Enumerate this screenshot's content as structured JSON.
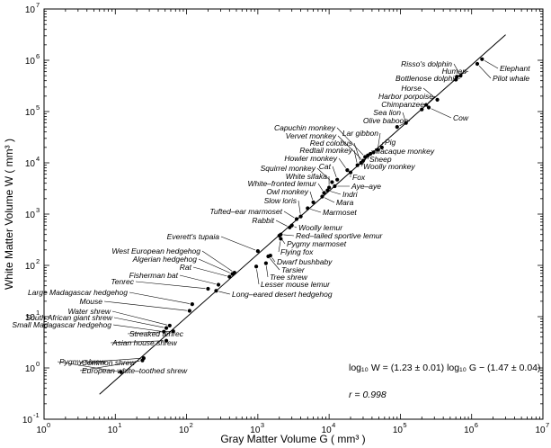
{
  "chart_data": {
    "type": "scatter",
    "xscale": "log",
    "yscale": "log",
    "xlim": [
      1,
      10000000
    ],
    "ylim": [
      0.1,
      10000000
    ],
    "xlabel": "Gray Matter Volume G ( mm³ )",
    "ylabel": "White Matter Volume W ( mm³ )",
    "x_ticks": [
      {
        "v": 1,
        "m": "10",
        "e": "0"
      },
      {
        "v": 10,
        "m": "10",
        "e": "1"
      },
      {
        "v": 100,
        "m": "10",
        "e": "2"
      },
      {
        "v": 1000,
        "m": "10",
        "e": "3"
      },
      {
        "v": 10000,
        "m": "10",
        "e": "4"
      },
      {
        "v": 100000,
        "m": "10",
        "e": "5"
      },
      {
        "v": 1000000,
        "m": "10",
        "e": "6"
      },
      {
        "v": 10000000,
        "m": "10",
        "e": "7"
      }
    ],
    "y_ticks": [
      {
        "v": 0.1,
        "m": "10",
        "e": "-1"
      },
      {
        "v": 1,
        "m": "10",
        "e": "0"
      },
      {
        "v": 10,
        "m": "10",
        "e": "1"
      },
      {
        "v": 100,
        "m": "10",
        "e": "2"
      },
      {
        "v": 1000,
        "m": "10",
        "e": "3"
      },
      {
        "v": 10000,
        "m": "10",
        "e": "4"
      },
      {
        "v": 100000,
        "m": "10",
        "e": "5"
      },
      {
        "v": 1000000,
        "m": "10",
        "e": "6"
      },
      {
        "v": 10000000,
        "m": "10",
        "e": "7"
      }
    ],
    "fit": {
      "equation": "log₁₀ W = (1.23 ± 0.01) log₁₀ G − (1.47 ± 0.04)",
      "r": "r = 0.998",
      "slope": 1.23,
      "intercept": -1.47,
      "x_range": [
        6,
        3000000
      ]
    },
    "points": [
      {
        "label": "Pygmy shrew",
        "x": 12,
        "y": 0.83
      },
      {
        "label": "Common shrew",
        "x": 25,
        "y": 1.55
      },
      {
        "label": "European white-toothed shrew",
        "x": 24,
        "y": 1.4
      },
      {
        "label": "Asian house shrew",
        "x": 52,
        "y": 3.4
      },
      {
        "label": "Streaked tenrec",
        "x": 65,
        "y": 5.2
      },
      {
        "label": "Small Madagascar hedgehog",
        "x": 48,
        "y": 5.1
      },
      {
        "label": "South African giant shrew",
        "x": 52,
        "y": 6
      },
      {
        "label": "Water shrew",
        "x": 58,
        "y": 6.7
      },
      {
        "label": "Mouse",
        "x": 110,
        "y": 13
      },
      {
        "label": "Large Madagascar hedgehog",
        "x": 120,
        "y": 17.5
      },
      {
        "label": "Tenrec",
        "x": 200,
        "y": 35
      },
      {
        "label": "Fisherman bat",
        "x": 280,
        "y": 42
      },
      {
        "label": "Long-eared desert hedgehog",
        "x": 260,
        "y": 32
      },
      {
        "label": "Rat",
        "x": 400,
        "y": 60
      },
      {
        "label": "Algerian hedgehog",
        "x": 440,
        "y": 68
      },
      {
        "label": "West European hedgehog",
        "x": 470,
        "y": 72
      },
      {
        "label": "Everett's tupaia",
        "x": 1000,
        "y": 190
      },
      {
        "label": "Lesser mouse lemur",
        "x": 950,
        "y": 95
      },
      {
        "label": "Tree shrew",
        "x": 1300,
        "y": 110
      },
      {
        "label": "Tarsier",
        "x": 1400,
        "y": 150
      },
      {
        "label": "Dwarf bushbaby",
        "x": 1500,
        "y": 155
      },
      {
        "label": "Flying fox",
        "x": 2100,
        "y": 330
      },
      {
        "label": "Pygmy marmoset",
        "x": 2000,
        "y": 380
      },
      {
        "label": "Red-tailed sportive lemur",
        "x": 2100,
        "y": 400
      },
      {
        "label": "Rabbit",
        "x": 2800,
        "y": 550
      },
      {
        "label": "Woolly lemur",
        "x": 3000,
        "y": 600
      },
      {
        "label": "Tufted-ear marmoset",
        "x": 3500,
        "y": 800
      },
      {
        "label": "Slow loris",
        "x": 4000,
        "y": 900
      },
      {
        "label": "Marmoset",
        "x": 5000,
        "y": 1300
      },
      {
        "label": "Owl monkey",
        "x": 6000,
        "y": 1700
      },
      {
        "label": "Mara",
        "x": 8000,
        "y": 2200
      },
      {
        "label": "White-fronted lemur",
        "x": 8500,
        "y": 2600
      },
      {
        "label": "Indri",
        "x": 9500,
        "y": 2900
      },
      {
        "label": "White sifaka",
        "x": 10000,
        "y": 3300
      },
      {
        "label": "Aye-aye",
        "x": 12000,
        "y": 3500
      },
      {
        "label": "Squirrel monkey",
        "x": 11000,
        "y": 4200
      },
      {
        "label": "Cat",
        "x": 13000,
        "y": 4700
      },
      {
        "label": "Howler monkey",
        "x": 18000,
        "y": 7200
      },
      {
        "label": "Fox",
        "x": 20000,
        "y": 6500
      },
      {
        "label": "Redtail monkey",
        "x": 25000,
        "y": 9000
      },
      {
        "label": "Red colobus",
        "x": 28000,
        "y": 10000
      },
      {
        "label": "Vervet monkey",
        "x": 30000,
        "y": 11000
      },
      {
        "label": "Capuchin monkey",
        "x": 32000,
        "y": 13000
      },
      {
        "label": "Woolly monkey",
        "x": 35000,
        "y": 14000
      },
      {
        "label": "Sheep",
        "x": 38000,
        "y": 15000
      },
      {
        "label": "Macaque monkey",
        "x": 42000,
        "y": 16000
      },
      {
        "label": "Lar gibbon",
        "x": 48000,
        "y": 18000
      },
      {
        "label": "Pig",
        "x": 55000,
        "y": 20000
      },
      {
        "label": "Olive baboon",
        "x": 90000,
        "y": 50000
      },
      {
        "label": "Sea lion",
        "x": 120000,
        "y": 60000
      },
      {
        "label": "Chimpanzee",
        "x": 200000,
        "y": 110000
      },
      {
        "label": "Harbor porpoise",
        "x": 230000,
        "y": 135000
      },
      {
        "label": "Cow",
        "x": 250000,
        "y": 120000
      },
      {
        "label": "Horse",
        "x": 330000,
        "y": 170000
      },
      {
        "label": "Bottlenose dolphin",
        "x": 600000,
        "y": 420000
      },
      {
        "label": "Human",
        "x": 620000,
        "y": 480000
      },
      {
        "label": "Risso's dolphin",
        "x": 700000,
        "y": 500000
      },
      {
        "label": "Elephant",
        "x": 1400000,
        "y": 1050000
      },
      {
        "label": "Pilot whale",
        "x": 1200000,
        "y": 850000
      }
    ],
    "labels": [
      {
        "text": "Risso's dolphin",
        "tx": 503,
        "ty": 74,
        "anchor": "end",
        "x": 700000,
        "y": 500000
      },
      {
        "text": "Human",
        "tx": 519,
        "ty": 82,
        "anchor": "end",
        "x": 620000,
        "y": 480000
      },
      {
        "text": "Bottlenose dolphin",
        "tx": 510,
        "ty": 90,
        "anchor": "end",
        "x": 600000,
        "y": 420000
      },
      {
        "text": "Elephant",
        "tx": 556,
        "ty": 79,
        "anchor": "start",
        "x": 1400000,
        "y": 1050000
      },
      {
        "text": "Pilot whale",
        "tx": 548,
        "ty": 90,
        "anchor": "start",
        "x": 1200000,
        "y": 850000
      },
      {
        "text": "Horse",
        "tx": 469,
        "ty": 101,
        "anchor": "end",
        "x": 330000,
        "y": 170000
      },
      {
        "text": "Harbor porpoise",
        "tx": 482,
        "ty": 110,
        "anchor": "end",
        "x": 230000,
        "y": 135000
      },
      {
        "text": "Chimpanzee",
        "tx": 472,
        "ty": 119,
        "anchor": "end",
        "x": 200000,
        "y": 110000
      },
      {
        "text": "Cow",
        "tx": 504,
        "ty": 134,
        "anchor": "start",
        "x": 250000,
        "y": 120000
      },
      {
        "text": "Sea lion",
        "tx": 446,
        "ty": 128,
        "anchor": "end",
        "x": 120000,
        "y": 60000
      },
      {
        "text": "Olive baboon",
        "tx": 454,
        "ty": 137,
        "anchor": "end",
        "x": 90000,
        "y": 50000
      },
      {
        "text": "Capuchin monkey",
        "tx": 373,
        "ty": 145,
        "anchor": "end",
        "x": 32000,
        "y": 13000
      },
      {
        "text": "Lar gibbon",
        "tx": 421,
        "ty": 151,
        "anchor": "end",
        "x": 48000,
        "y": 18000
      },
      {
        "text": "Vervet monkey",
        "tx": 374,
        "ty": 154,
        "anchor": "end",
        "x": 30000,
        "y": 11000
      },
      {
        "text": "Red colobus",
        "tx": 392,
        "ty": 162,
        "anchor": "end",
        "x": 28000,
        "y": 10000
      },
      {
        "text": "Pig",
        "tx": 428,
        "ty": 161,
        "anchor": "start",
        "x": 55000,
        "y": 20000
      },
      {
        "text": "Redtail monkey",
        "tx": 392,
        "ty": 170,
        "anchor": "end",
        "x": 25000,
        "y": 9000
      },
      {
        "text": "Macaque monkey",
        "tx": 416,
        "ty": 171,
        "anchor": "start",
        "x": 42000,
        "y": 16000
      },
      {
        "text": "Howler monkey",
        "tx": 375,
        "ty": 179,
        "anchor": "end",
        "x": 18000,
        "y": 7200
      },
      {
        "text": "Sheep",
        "tx": 411,
        "ty": 180,
        "anchor": "start",
        "x": 38000,
        "y": 15000
      },
      {
        "text": "Woolly monkey",
        "tx": 404,
        "ty": 188,
        "anchor": "start",
        "x": 35000,
        "y": 14000
      },
      {
        "text": "Squirrel monkey",
        "tx": 351,
        "ty": 190,
        "anchor": "end",
        "x": 11000,
        "y": 4200
      },
      {
        "text": "Cat",
        "tx": 368,
        "ty": 188,
        "anchor": "end",
        "x": 13000,
        "y": 4700
      },
      {
        "text": "White sifaka",
        "tx": 364,
        "ty": 199,
        "anchor": "end",
        "x": 10000,
        "y": 3300
      },
      {
        "text": "Fox",
        "tx": 392,
        "ty": 200,
        "anchor": "start",
        "x": 20000,
        "y": 6500
      },
      {
        "text": "White–fronted lemur",
        "tx": 352,
        "ty": 207,
        "anchor": "end",
        "x": 8500,
        "y": 2600
      },
      {
        "text": "Aye–aye",
        "tx": 391,
        "ty": 210,
        "anchor": "start",
        "x": 12000,
        "y": 3500
      },
      {
        "text": "Owl monkey",
        "tx": 343,
        "ty": 216,
        "anchor": "end",
        "x": 6000,
        "y": 1700
      },
      {
        "text": "Indri",
        "tx": 381,
        "ty": 219,
        "anchor": "start",
        "x": 9500,
        "y": 2900
      },
      {
        "text": "Mara",
        "tx": 374,
        "ty": 228,
        "anchor": "start",
        "x": 8000,
        "y": 2200
      },
      {
        "text": "Slow loris",
        "tx": 330,
        "ty": 226,
        "anchor": "end",
        "x": 4000,
        "y": 900
      },
      {
        "text": "Marmoset",
        "tx": 359,
        "ty": 239,
        "anchor": "start",
        "x": 5000,
        "y": 1300
      },
      {
        "text": "Tufted–ear marmoset",
        "tx": 314,
        "ty": 238,
        "anchor": "end",
        "x": 3500,
        "y": 800
      },
      {
        "text": "Rabbit",
        "tx": 305,
        "ty": 248,
        "anchor": "end",
        "x": 2800,
        "y": 550
      },
      {
        "text": "Woolly lemur",
        "tx": 332,
        "ty": 256,
        "anchor": "start",
        "x": 3000,
        "y": 600
      },
      {
        "text": "Everett's tupaia",
        "tx": 244,
        "ty": 266,
        "anchor": "end",
        "x": 1000,
        "y": 190
      },
      {
        "text": "Red–tailed sportive lemur",
        "tx": 329,
        "ty": 265,
        "anchor": "start",
        "x": 2100,
        "y": 400
      },
      {
        "text": "Pygmy marmoset",
        "tx": 319,
        "ty": 274,
        "anchor": "start",
        "x": 2000,
        "y": 380
      },
      {
        "text": "West European hedgehog",
        "tx": 223,
        "ty": 282,
        "anchor": "end",
        "x": 470,
        "y": 72
      },
      {
        "text": "Flying fox",
        "tx": 312,
        "ty": 283,
        "anchor": "start",
        "x": 2100,
        "y": 330
      },
      {
        "text": "Algerian hedgehog",
        "tx": 219,
        "ty": 291,
        "anchor": "end",
        "x": 440,
        "y": 68
      },
      {
        "text": "Dwarf bushbaby",
        "tx": 308,
        "ty": 294,
        "anchor": "start",
        "x": 1500,
        "y": 155
      },
      {
        "text": "Rat",
        "tx": 213,
        "ty": 300,
        "anchor": "end",
        "x": 400,
        "y": 60
      },
      {
        "text": "Tarsier",
        "tx": 313,
        "ty": 303,
        "anchor": "start",
        "x": 1400,
        "y": 150
      },
      {
        "text": "Fisherman bat",
        "tx": 198,
        "ty": 309,
        "anchor": "end",
        "x": 280,
        "y": 42
      },
      {
        "text": "Tree shrew",
        "tx": 300,
        "ty": 311,
        "anchor": "start",
        "x": 1300,
        "y": 110
      },
      {
        "text": "Tenrec",
        "tx": 149,
        "ty": 316,
        "anchor": "end",
        "x": 200,
        "y": 35
      },
      {
        "text": "Lesser mouse lemur",
        "tx": 290,
        "ty": 319,
        "anchor": "start",
        "x": 950,
        "y": 95
      },
      {
        "text": "Large Madagascar hedgehog",
        "tx": 142,
        "ty": 328,
        "anchor": "end",
        "x": 120,
        "y": 17.5
      },
      {
        "text": "Long–eared desert hedgehog",
        "tx": 258,
        "ty": 330,
        "anchor": "start",
        "x": 260,
        "y": 32
      },
      {
        "text": "Mouse",
        "tx": 114,
        "ty": 338,
        "anchor": "end",
        "x": 110,
        "y": 13
      },
      {
        "text": "Water shrew",
        "tx": 123,
        "ty": 349,
        "anchor": "end",
        "x": 58,
        "y": 6.7
      },
      {
        "text": "South African giant shrew",
        "tx": 125,
        "ty": 356,
        "anchor": "end",
        "x": 52,
        "y": 6
      },
      {
        "text": "Small Madagascar hedgehog",
        "tx": 124,
        "ty": 364,
        "anchor": "end",
        "x": 48,
        "y": 5.1
      },
      {
        "text": "Streaked tenrec",
        "tx": 144,
        "ty": 374,
        "anchor": "start",
        "x": 65,
        "y": 5.2
      },
      {
        "text": "Asian house shrew",
        "tx": 125,
        "ty": 384,
        "anchor": "start",
        "x": 52,
        "y": 3.4
      },
      {
        "text": "Pygmy shrew",
        "tx": 66,
        "ty": 405,
        "anchor": "start",
        "x": 12,
        "y": 0.83
      },
      {
        "text": "Common shrew",
        "tx": 91,
        "ty": 406,
        "anchor": "start",
        "x": 25,
        "y": 1.55
      },
      {
        "text": "European white–toothed shrew",
        "tx": 91,
        "ty": 415,
        "anchor": "start",
        "x": 24,
        "y": 1.4
      }
    ]
  }
}
